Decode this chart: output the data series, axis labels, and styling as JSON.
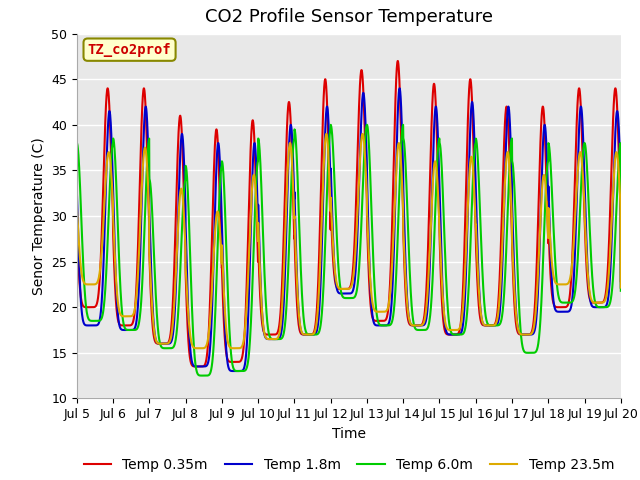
{
  "title": "CO2 Profile Sensor Temperature",
  "xlabel": "Time",
  "ylabel": "Senor Temperature (C)",
  "ylim": [
    10,
    50
  ],
  "x_tick_labels": [
    "Jul 5",
    "Jul 6",
    "Jul 7",
    "Jul 8",
    "Jul 9",
    "Jul 10",
    "Jul 11",
    "Jul 12",
    "Jul 13",
    "Jul 14",
    "Jul 15",
    "Jul 16",
    "Jul 17",
    "Jul 18",
    "Jul 19",
    "Jul 20"
  ],
  "series_colors": [
    "#dd0000",
    "#0000cc",
    "#00cc00",
    "#ddaa00"
  ],
  "series_labels": [
    "Temp 0.35m",
    "Temp 1.8m",
    "Temp 6.0m",
    "Temp 23.5m"
  ],
  "line_width": 1.5,
  "annotation_text": "TZ_co2prof",
  "annotation_color": "#cc0000",
  "annotation_bg": "#ffffcc",
  "annotation_border": "#888800",
  "fig_bg": "#ffffff",
  "plot_bg": "#e8e8e8",
  "grid_color": "#ffffff",
  "title_fontsize": 13,
  "axis_fontsize": 10,
  "tick_fontsize": 9,
  "legend_fontsize": 10
}
